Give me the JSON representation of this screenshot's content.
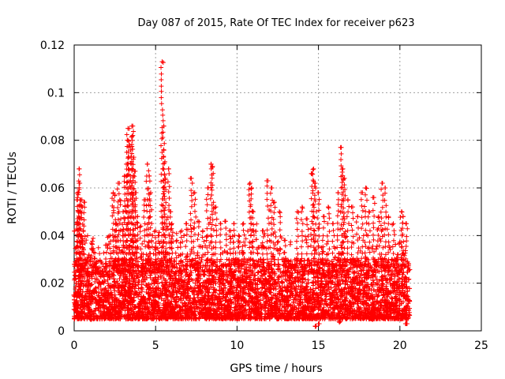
{
  "chart_data": {
    "type": "scatter",
    "title": "Day 087 of 2015, Rate Of TEC Index for receiver p623",
    "xlabel": "GPS time / hours",
    "ylabel": "ROTI / TECUs",
    "xlim": [
      0,
      25
    ],
    "ylim": [
      0,
      0.12
    ],
    "x_ticks": [
      0,
      5,
      10,
      15,
      20,
      25
    ],
    "x_tick_labels": [
      "0",
      "5",
      "10",
      "15",
      "20",
      "25"
    ],
    "y_ticks": [
      0,
      0.02,
      0.04,
      0.06,
      0.08,
      0.1,
      0.12
    ],
    "y_tick_labels": [
      "0",
      "0.02",
      "0.04",
      "0.06",
      "0.08",
      "0.1",
      "0.12"
    ],
    "grid": true,
    "legend": "none",
    "marker": "plus",
    "series_color": "#ff0000",
    "data_x_range_hours": [
      0,
      20.6
    ],
    "bulk_range": [
      0.005,
      0.03
    ],
    "series": [
      {
        "points": [
          [
            0.0,
            0.009
          ],
          [
            0.05,
            0.015
          ],
          [
            0.1,
            0.022
          ],
          [
            0.15,
            0.035
          ],
          [
            0.2,
            0.045
          ],
          [
            0.2,
            0.055
          ],
          [
            0.25,
            0.058
          ],
          [
            0.3,
            0.062
          ],
          [
            0.3,
            0.068
          ],
          [
            0.35,
            0.05
          ],
          [
            0.4,
            0.055
          ],
          [
            0.45,
            0.04
          ],
          [
            0.5,
            0.052
          ],
          [
            0.6,
            0.054
          ],
          [
            0.7,
            0.03
          ],
          [
            0.8,
            0.025
          ],
          [
            0.9,
            0.02
          ],
          [
            1.1,
            0.034
          ],
          [
            1.2,
            0.033
          ],
          [
            1.4,
            0.012
          ],
          [
            1.6,
            0.02
          ],
          [
            1.8,
            0.015
          ],
          [
            2.0,
            0.036
          ],
          [
            2.2,
            0.04
          ],
          [
            2.4,
            0.058
          ],
          [
            2.5,
            0.057
          ],
          [
            2.6,
            0.045
          ],
          [
            2.7,
            0.062
          ],
          [
            2.8,
            0.055
          ],
          [
            3.0,
            0.05
          ],
          [
            3.1,
            0.065
          ],
          [
            3.2,
            0.07
          ],
          [
            3.3,
            0.085
          ],
          [
            3.3,
            0.08
          ],
          [
            3.4,
            0.078
          ],
          [
            3.5,
            0.073
          ],
          [
            3.6,
            0.082
          ],
          [
            3.6,
            0.086
          ],
          [
            3.7,
            0.067
          ],
          [
            3.8,
            0.058
          ],
          [
            3.9,
            0.048
          ],
          [
            4.1,
            0.044
          ],
          [
            4.3,
            0.055
          ],
          [
            4.5,
            0.07
          ],
          [
            4.6,
            0.065
          ],
          [
            4.7,
            0.058
          ],
          [
            4.8,
            0.04
          ],
          [
            5.0,
            0.042
          ],
          [
            5.2,
            0.04
          ],
          [
            5.4,
            0.113
          ],
          [
            5.5,
            0.086
          ],
          [
            5.5,
            0.076
          ],
          [
            5.6,
            0.064
          ],
          [
            5.8,
            0.068
          ],
          [
            5.9,
            0.05
          ],
          [
            6.0,
            0.045
          ],
          [
            6.3,
            0.038
          ],
          [
            6.6,
            0.042
          ],
          [
            6.9,
            0.045
          ],
          [
            7.2,
            0.064
          ],
          [
            7.4,
            0.058
          ],
          [
            7.6,
            0.046
          ],
          [
            7.9,
            0.042
          ],
          [
            8.2,
            0.06
          ],
          [
            8.4,
            0.07
          ],
          [
            8.5,
            0.069
          ],
          [
            8.7,
            0.052
          ],
          [
            9.0,
            0.045
          ],
          [
            9.3,
            0.046
          ],
          [
            9.6,
            0.042
          ],
          [
            9.8,
            0.045
          ],
          [
            10.1,
            0.04
          ],
          [
            10.4,
            0.045
          ],
          [
            10.8,
            0.062
          ],
          [
            10.9,
            0.06
          ],
          [
            11.0,
            0.05
          ],
          [
            11.3,
            0.035
          ],
          [
            11.6,
            0.042
          ],
          [
            11.9,
            0.063
          ],
          [
            12.1,
            0.06
          ],
          [
            12.3,
            0.054
          ],
          [
            12.6,
            0.05
          ],
          [
            12.9,
            0.038
          ],
          [
            13.3,
            0.028
          ],
          [
            13.7,
            0.05
          ],
          [
            14.0,
            0.052
          ],
          [
            14.3,
            0.047
          ],
          [
            14.6,
            0.066
          ],
          [
            14.7,
            0.068
          ],
          [
            14.8,
            0.062
          ],
          [
            15.0,
            0.058
          ],
          [
            15.3,
            0.048
          ],
          [
            15.6,
            0.052
          ],
          [
            15.9,
            0.045
          ],
          [
            16.2,
            0.058
          ],
          [
            16.4,
            0.077
          ],
          [
            16.5,
            0.068
          ],
          [
            16.6,
            0.064
          ],
          [
            16.8,
            0.055
          ],
          [
            17.1,
            0.052
          ],
          [
            17.4,
            0.048
          ],
          [
            17.7,
            0.058
          ],
          [
            17.9,
            0.06
          ],
          [
            18.1,
            0.05
          ],
          [
            18.4,
            0.056
          ],
          [
            18.7,
            0.048
          ],
          [
            18.9,
            0.062
          ],
          [
            19.1,
            0.06
          ],
          [
            19.3,
            0.048
          ],
          [
            19.6,
            0.045
          ],
          [
            19.9,
            0.032
          ],
          [
            20.1,
            0.05
          ],
          [
            20.2,
            0.048
          ],
          [
            20.4,
            0.045
          ],
          [
            20.5,
            0.028
          ],
          [
            15.0,
            0.003
          ],
          [
            14.8,
            0.002
          ],
          [
            16.3,
            0.004
          ],
          [
            20.4,
            0.003
          ],
          [
            4.4,
            0.005
          ],
          [
            1.0,
            0.005
          ],
          [
            7.0,
            0.006
          ],
          [
            12.5,
            0.005
          ],
          [
            18.3,
            0.005
          ],
          [
            9.5,
            0.006
          ]
        ]
      }
    ]
  }
}
